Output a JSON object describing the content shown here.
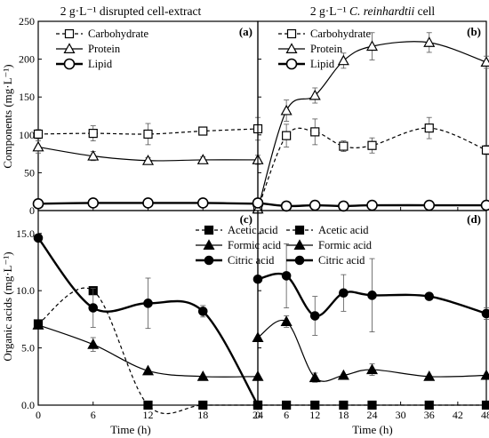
{
  "colors": {
    "ink": "#000000",
    "background": "#ffffff"
  },
  "titles": {
    "left": "2 g·L⁻¹ disrupted cell-extract",
    "right_prefix": "2 g·L⁻¹ ",
    "right_species": "C. reinhardtii",
    "right_suffix": " cell"
  },
  "axes": {
    "top_ylabel": "Components (mg·L⁻¹)",
    "bottom_ylabel": "Organic acids (mg·L⁻¹)",
    "xlabel": "Time (h)"
  },
  "chart_data": [
    {
      "panel": "(a)",
      "type": "line",
      "xlim": [
        0,
        24
      ],
      "ylim": [
        0,
        250
      ],
      "x_ticks": [],
      "y_ticks": [
        0,
        50,
        100,
        150,
        200,
        250
      ],
      "legend_position": "top-left",
      "series": [
        {
          "name": "Carbohydrate",
          "style": "dashed",
          "marker": "open-square",
          "x": [
            0,
            6,
            12,
            18,
            24
          ],
          "y": [
            101,
            102,
            101,
            105,
            108
          ],
          "err": [
            6,
            10,
            14,
            5,
            15
          ]
        },
        {
          "name": "Protein",
          "style": "thin-solid",
          "marker": "open-triangle",
          "x": [
            0,
            6,
            12,
            18,
            24
          ],
          "y": [
            84,
            72,
            66,
            67,
            67
          ],
          "err": [
            8,
            6,
            4,
            4,
            6
          ]
        },
        {
          "name": "Lipid",
          "style": "thick-solid",
          "marker": "open-circle",
          "x": [
            0,
            6,
            12,
            18,
            24
          ],
          "y": [
            9,
            10,
            10,
            10,
            9
          ],
          "err": [
            0,
            0,
            0,
            0,
            0
          ]
        }
      ]
    },
    {
      "panel": "(b)",
      "type": "line",
      "xlim": [
        0,
        48
      ],
      "ylim": [
        0,
        250
      ],
      "x_ticks": [],
      "y_ticks": [],
      "legend_position": "top-left",
      "series": [
        {
          "name": "Carbohydrate",
          "style": "dashed",
          "marker": "open-square",
          "x": [
            0,
            6,
            12,
            18,
            24,
            36,
            48
          ],
          "y": [
            2,
            99,
            104,
            85,
            86,
            109,
            80
          ],
          "err": [
            0,
            15,
            17,
            7,
            10,
            14,
            6
          ]
        },
        {
          "name": "Protein",
          "style": "thin-solid",
          "marker": "open-triangle",
          "x": [
            0,
            6,
            12,
            18,
            24,
            36,
            48
          ],
          "y": [
            2,
            132,
            152,
            198,
            217,
            222,
            196
          ],
          "err": [
            0,
            14,
            10,
            10,
            18,
            13,
            8
          ]
        },
        {
          "name": "Lipid",
          "style": "thick-solid",
          "marker": "open-circle",
          "x": [
            0,
            6,
            12,
            18,
            24,
            36,
            48
          ],
          "y": [
            10,
            6,
            7,
            6,
            7,
            7,
            7
          ],
          "err": [
            0,
            0,
            0,
            0,
            0,
            0,
            0
          ]
        }
      ]
    },
    {
      "panel": "(c)",
      "type": "line",
      "xlim": [
        0,
        24
      ],
      "ylim": [
        0,
        17
      ],
      "x_ticks": [
        0,
        6,
        12,
        18,
        24
      ],
      "y_ticks": [
        0.0,
        5.0,
        10.0,
        15.0
      ],
      "legend_position": "top-right",
      "series": [
        {
          "name": "Acetic acid",
          "style": "dashed",
          "marker": "filled-square",
          "x": [
            0,
            6,
            12,
            18,
            24
          ],
          "y": [
            7.1,
            10.0,
            0.0,
            0.0,
            0.0
          ],
          "err": [
            0,
            0,
            0,
            0,
            0
          ]
        },
        {
          "name": "Formic acid",
          "style": "thin-solid",
          "marker": "filled-triangle",
          "x": [
            0,
            6,
            12,
            18,
            24
          ],
          "y": [
            7.0,
            5.3,
            3.0,
            2.5,
            2.5
          ],
          "err": [
            0,
            0.6,
            0,
            0,
            0
          ]
        },
        {
          "name": "Citric acid",
          "style": "thick-solid",
          "marker": "filled-circle",
          "x": [
            0,
            6,
            12,
            18,
            24
          ],
          "y": [
            14.6,
            8.5,
            8.9,
            8.2,
            0.0
          ],
          "err": [
            0,
            1.7,
            2.2,
            0.5,
            0
          ]
        }
      ]
    },
    {
      "panel": "(d)",
      "type": "line",
      "xlim": [
        0,
        48
      ],
      "ylim": [
        0,
        17
      ],
      "x_ticks": [
        0,
        6,
        12,
        18,
        24,
        30,
        36,
        42,
        48
      ],
      "y_ticks": [],
      "legend_position": "top-right",
      "series": [
        {
          "name": "Acetic acid",
          "style": "dashed",
          "marker": "filled-square",
          "x": [
            0,
            6,
            12,
            18,
            24,
            36,
            48
          ],
          "y": [
            0,
            0,
            0,
            0,
            0,
            0,
            0
          ],
          "err": [
            0,
            0,
            0,
            0,
            0,
            0,
            0
          ]
        },
        {
          "name": "Formic acid",
          "style": "thin-solid",
          "marker": "filled-triangle",
          "x": [
            0,
            6,
            12,
            18,
            24,
            36,
            48
          ],
          "y": [
            5.9,
            7.3,
            2.4,
            2.6,
            3.1,
            2.5,
            2.6
          ],
          "err": [
            0,
            0.5,
            0.4,
            0,
            0.5,
            0,
            0
          ]
        },
        {
          "name": "Citric acid",
          "style": "thick-solid",
          "marker": "filled-circle",
          "x": [
            0,
            6,
            12,
            18,
            24,
            36,
            48
          ],
          "y": [
            11.0,
            11.3,
            7.8,
            9.8,
            9.6,
            9.5,
            8.0
          ],
          "err": [
            0,
            2.8,
            1.7,
            1.6,
            3.2,
            0,
            0.5
          ]
        }
      ]
    }
  ]
}
